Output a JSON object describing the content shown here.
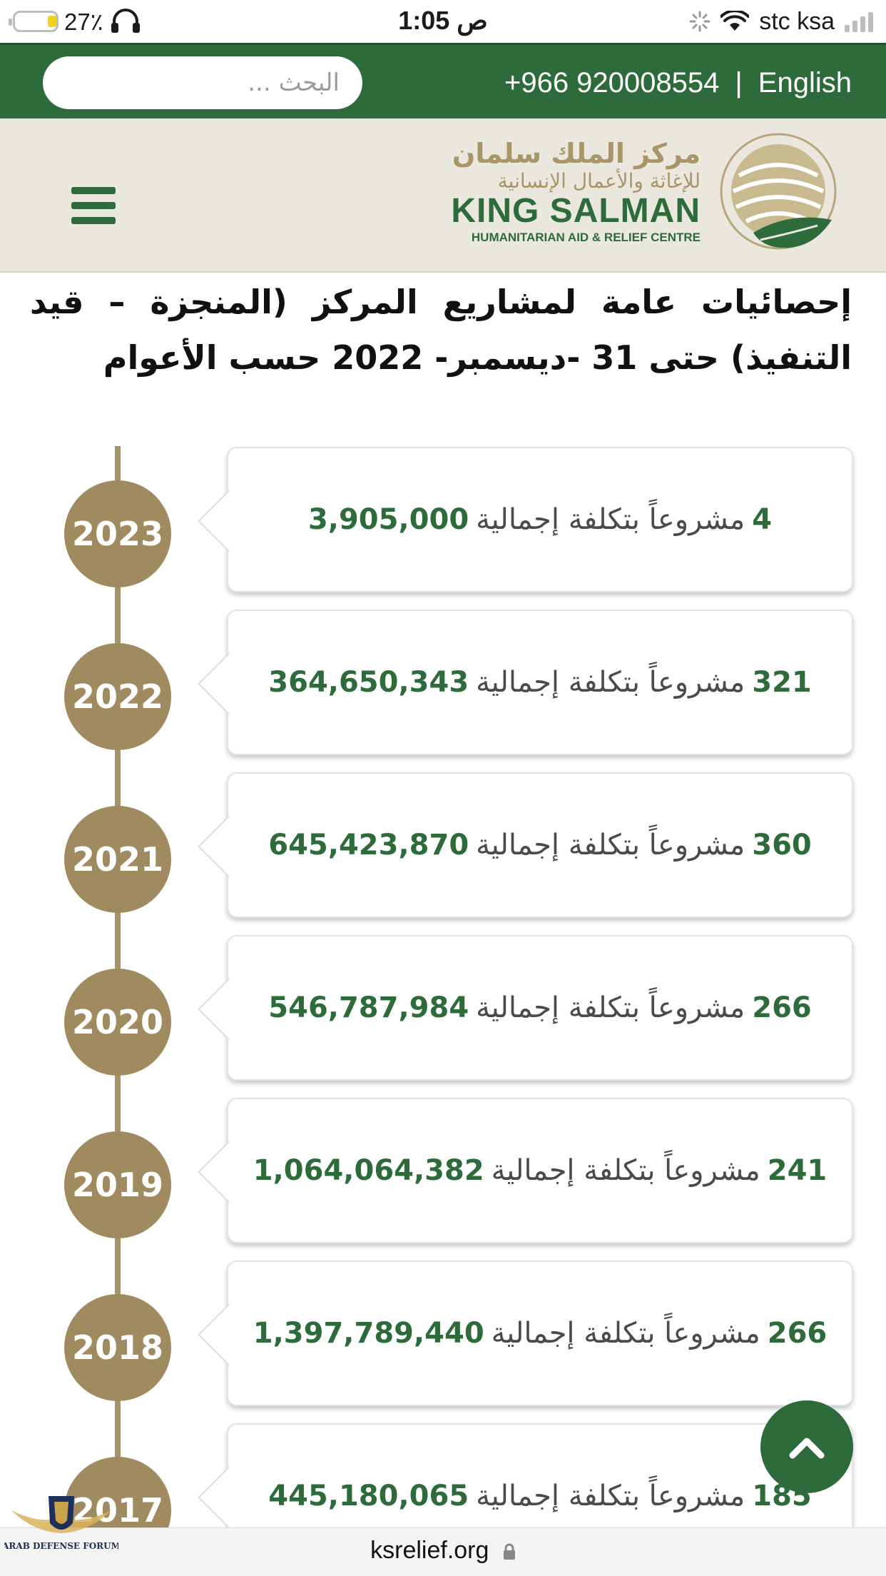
{
  "status_bar": {
    "battery_percent": "27٪",
    "time": "1:05 ص",
    "carrier": "stc ksa",
    "battery_level": 0.27
  },
  "top_bar": {
    "language_link": "English",
    "separator": "|",
    "phone": "+966 920008554",
    "search_placeholder": "البحث ..."
  },
  "logo": {
    "arabic_line1": "مركز الملك سلمان",
    "arabic_line2": "للإغاثة والأعمال الإنسانية",
    "english_line1": "KING SALMAN",
    "english_line2": "HUMANITARIAN AID & RELIEF CENTRE"
  },
  "page_title": "إحصائيات عامة لمشاريع المركز (المنجزة – قيد التنفيذ) حتى 31 -ديسمبر- 2022 حسب الأعوام",
  "timeline": [
    {
      "year": "2023",
      "count": "4",
      "projects_label": "مشروعاً بتكلفة إجمالية",
      "amount": "3,905,000"
    },
    {
      "year": "2022",
      "count": "321",
      "projects_label": "مشروعاً بتكلفة إجمالية",
      "amount": "364,650,343"
    },
    {
      "year": "2021",
      "count": "360",
      "projects_label": "مشروعاً بتكلفة إجمالية",
      "amount": "645,423,870"
    },
    {
      "year": "2020",
      "count": "266",
      "projects_label": "مشروعاً بتكلفة إجمالية",
      "amount": "546,787,984"
    },
    {
      "year": "2019",
      "count": "241",
      "projects_label": "مشروعاً بتكلفة إجمالية",
      "amount": "1,064,064,382"
    },
    {
      "year": "2018",
      "count": "266",
      "projects_label": "مشروعاً بتكلفة إجمالية",
      "amount": "1,397,789,440"
    },
    {
      "year": "2017",
      "count": "185",
      "projects_label": "مشروعاً بتكلفة إجمالية",
      "amount": "445,180,065"
    }
  ],
  "browser": {
    "url": "ksrelief.org"
  },
  "watermark": {
    "text": "ARAB DEFENSE FORUM"
  },
  "icons": {
    "battery": "battery-icon",
    "headphones": "headphones-icon",
    "wifi": "wifi-icon",
    "activity": "activity-spinner-icon",
    "signal": "signal-icon",
    "menu": "hamburger-menu-icon",
    "scroll_top": "chevron-up-icon",
    "lock": "lock-icon",
    "emblem": "ksrelief-emblem-icon"
  },
  "colors": {
    "brand_green": "#2e6b3b",
    "gold": "#a08a5f",
    "header_bg": "#e9e7de"
  }
}
